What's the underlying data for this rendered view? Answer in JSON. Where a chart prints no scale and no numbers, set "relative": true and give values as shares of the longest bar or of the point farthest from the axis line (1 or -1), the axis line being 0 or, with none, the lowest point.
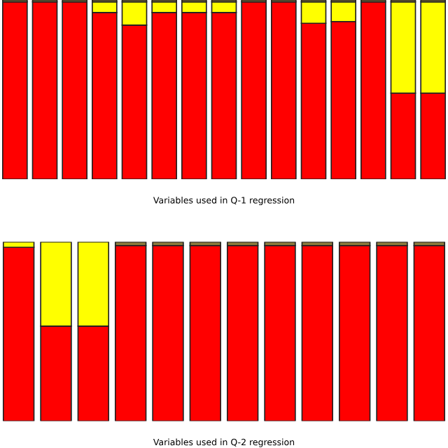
{
  "chart_data": [
    {
      "type": "bar",
      "stacked": true,
      "relative": true,
      "xlabel": "Variables used in Q-1 regression",
      "categories": [
        null,
        null,
        null,
        null,
        null,
        null,
        null,
        null,
        null,
        null,
        null,
        null,
        null,
        null,
        null
      ],
      "series": [
        {
          "color": "#ff0000",
          "values": [
            0.99,
            0.99,
            0.99,
            0.93,
            0.86,
            0.93,
            0.93,
            0.93,
            0.99,
            0.99,
            0.87,
            0.88,
            0.99,
            0.48,
            0.48
          ]
        },
        {
          "color": "#ffff00",
          "values": [
            null,
            null,
            null,
            0.06,
            0.13,
            0.06,
            0.06,
            0.06,
            null,
            null,
            0.12,
            0.11,
            null,
            0.51,
            0.51
          ]
        },
        {
          "color": "#8c7a3c",
          "values": [
            0.01,
            0.01,
            0.01,
            0.01,
            0.01,
            0.01,
            0.01,
            0.01,
            0.01,
            0.01,
            0.01,
            0.01,
            0.01,
            0.01,
            0.01
          ]
        }
      ]
    },
    {
      "type": "bar",
      "stacked": true,
      "relative": true,
      "xlabel": "Variables used in Q-2 regression",
      "categories": [
        null,
        null,
        null,
        null,
        null,
        null,
        null,
        null,
        null,
        null,
        null,
        null
      ],
      "series": [
        {
          "color": "#ff0000",
          "values": [
            0.97,
            0.53,
            0.53,
            0.98,
            0.98,
            0.98,
            0.98,
            0.98,
            0.98,
            0.98,
            0.98,
            0.98
          ]
        },
        {
          "color": "#ffff00",
          "values": [
            0.03,
            0.47,
            0.47,
            null,
            null,
            null,
            null,
            null,
            null,
            null,
            null,
            null
          ]
        },
        {
          "color": "#8c7a3c",
          "values": [
            null,
            null,
            null,
            0.02,
            0.02,
            0.02,
            0.02,
            0.02,
            0.02,
            0.02,
            0.02,
            0.02
          ]
        }
      ]
    }
  ]
}
